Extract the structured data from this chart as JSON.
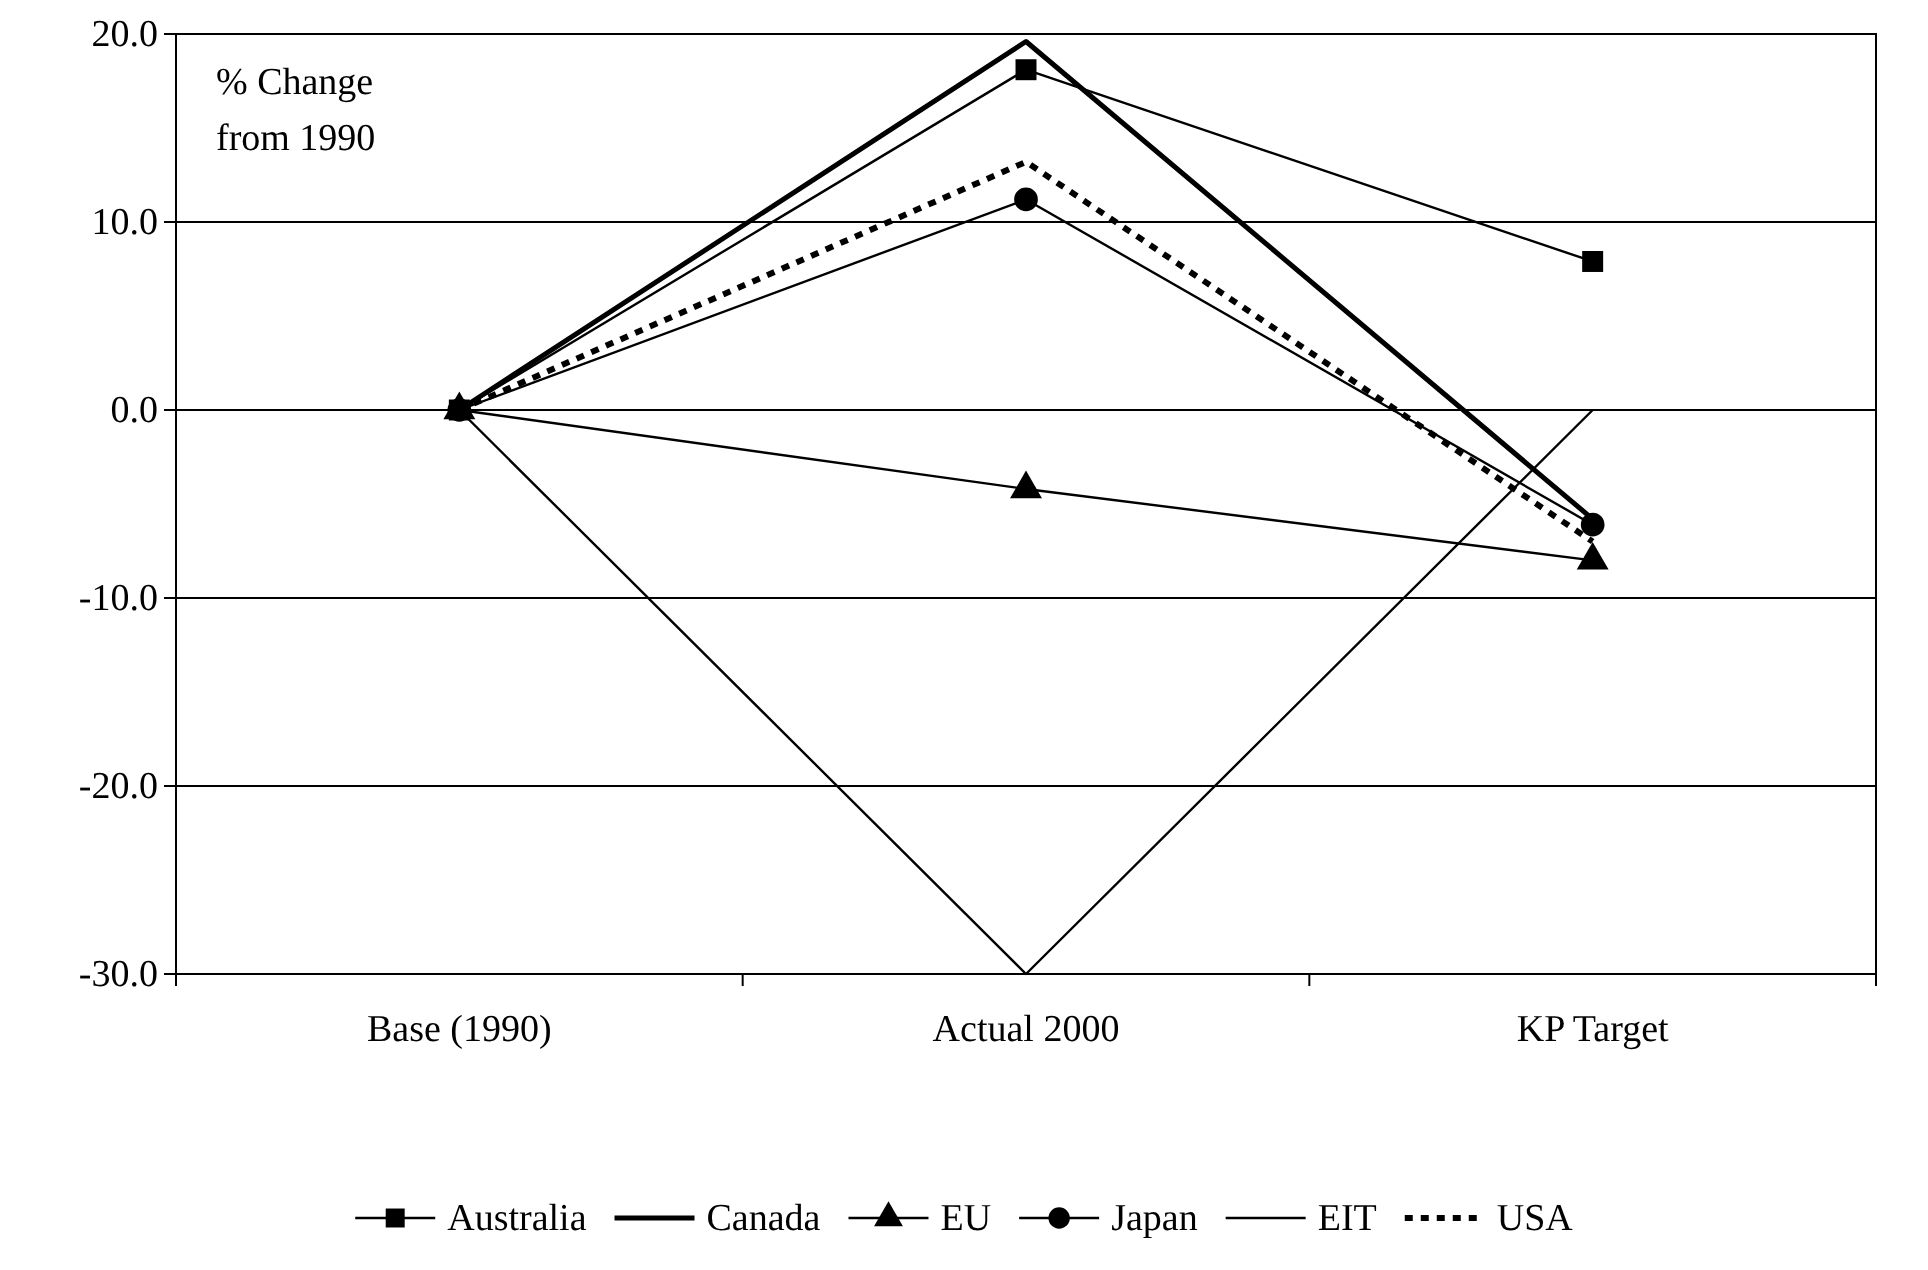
{
  "chart_data": {
    "type": "line",
    "categories": [
      "Base (1990)",
      "Actual 2000",
      "KP Target"
    ],
    "series": [
      {
        "name": "Australia",
        "color": "#000000",
        "values": [
          0,
          18.1,
          7.9
        ],
        "marker": "square",
        "line_style": "solid"
      },
      {
        "name": "Canada",
        "color": "#000000",
        "values": [
          0,
          19.6,
          -5.8
        ],
        "marker": "none",
        "line_style": "solid"
      },
      {
        "name": "EU",
        "color": "#000000",
        "values": [
          0,
          -4.2,
          -8.0
        ],
        "marker": "triangle",
        "line_style": "solid"
      },
      {
        "name": "Japan",
        "color": "#000000",
        "values": [
          0,
          11.2,
          -6.1
        ],
        "marker": "circle",
        "line_style": "solid"
      },
      {
        "name": "EIT",
        "color": "#000000",
        "values": [
          0,
          -30.0,
          0
        ],
        "marker": "none",
        "line_style": "solid"
      },
      {
        "name": "USA",
        "color": "#000000",
        "values": [
          0,
          13.2,
          -7.0
        ],
        "marker": "none",
        "line_style": "dotted"
      }
    ],
    "ylim": [
      -30,
      20
    ],
    "yticks": [
      {
        "value": -30,
        "label": "-30.0"
      },
      {
        "value": -20,
        "label": "-20.0"
      },
      {
        "value": -10,
        "label": "-10.0"
      },
      {
        "value": 0,
        "label": "0.0"
      },
      {
        "value": 10,
        "label": "10.0"
      },
      {
        "value": 20,
        "label": "20.0"
      }
    ],
    "grid": "y",
    "legend": "bottom",
    "annotations": [
      "% Change\nfrom 1990"
    ]
  }
}
